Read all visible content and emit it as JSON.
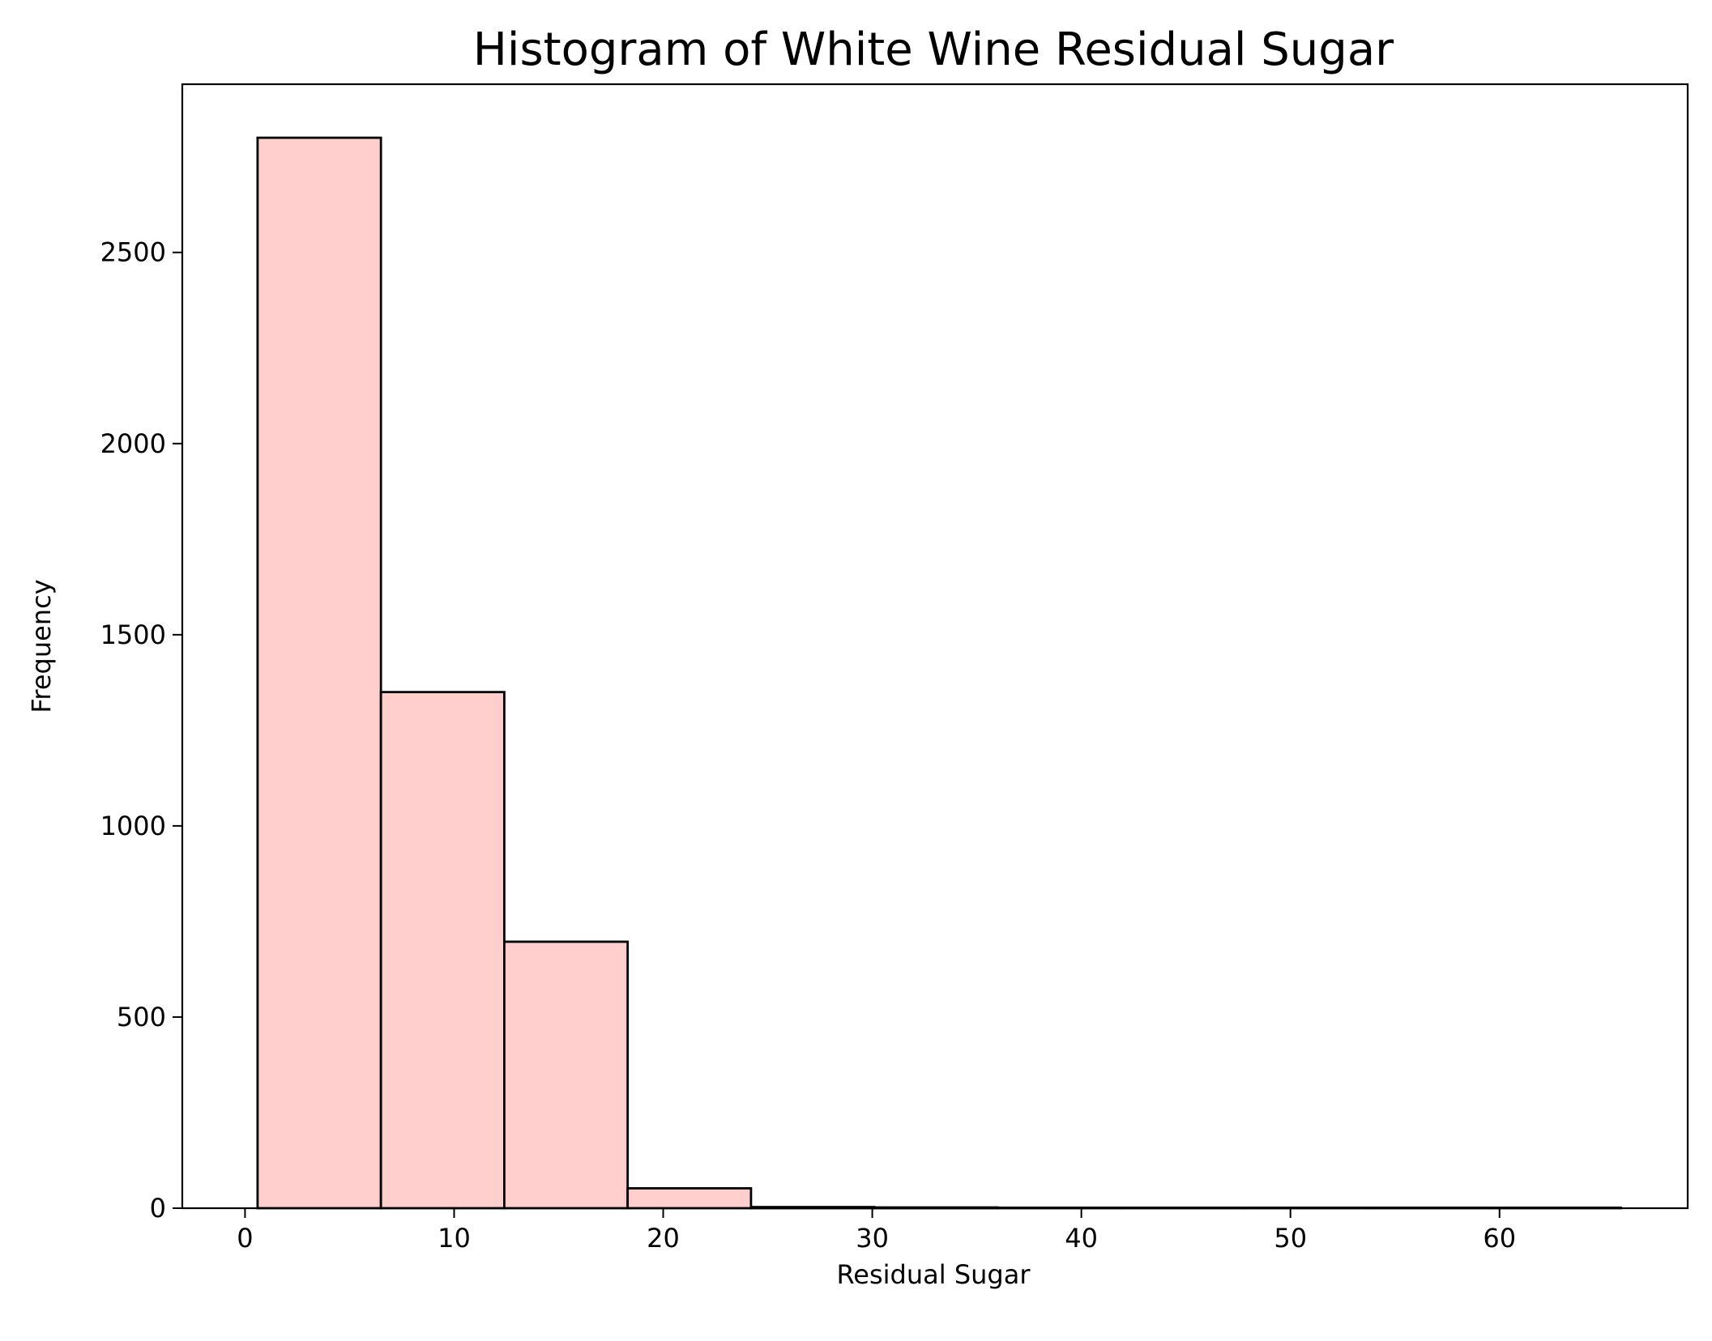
{
  "chart_data": {
    "type": "bar",
    "title": "Histogram of White Wine Residual Sugar",
    "xlabel": "Residual Sugar",
    "ylabel": "Frequency",
    "xlim": [
      -3,
      69
    ],
    "ylim": [
      0,
      2940
    ],
    "x_ticks": [
      0,
      10,
      20,
      30,
      40,
      50,
      60
    ],
    "y_ticks": [
      0,
      500,
      1000,
      1500,
      2000,
      2500
    ],
    "grid": false,
    "legend": "none",
    "bins": [
      {
        "start": 0.6,
        "end": 6.5,
        "count": 2800
      },
      {
        "start": 6.5,
        "end": 12.4,
        "count": 1350
      },
      {
        "start": 12.4,
        "end": 18.3,
        "count": 697
      },
      {
        "start": 18.3,
        "end": 24.2,
        "count": 52
      },
      {
        "start": 24.2,
        "end": 30.1,
        "count": 3
      },
      {
        "start": 30.1,
        "end": 36.0,
        "count": 2
      },
      {
        "start": 36.0,
        "end": 41.9,
        "count": 0
      },
      {
        "start": 41.9,
        "end": 47.8,
        "count": 0
      },
      {
        "start": 47.8,
        "end": 53.7,
        "count": 0
      },
      {
        "start": 53.7,
        "end": 59.6,
        "count": 0
      },
      {
        "start": 59.6,
        "end": 65.8,
        "count": 1
      }
    ],
    "colors": {
      "bar_fill": "#ffcfcd",
      "bar_edge": "#000000",
      "axis": "#000000"
    }
  }
}
